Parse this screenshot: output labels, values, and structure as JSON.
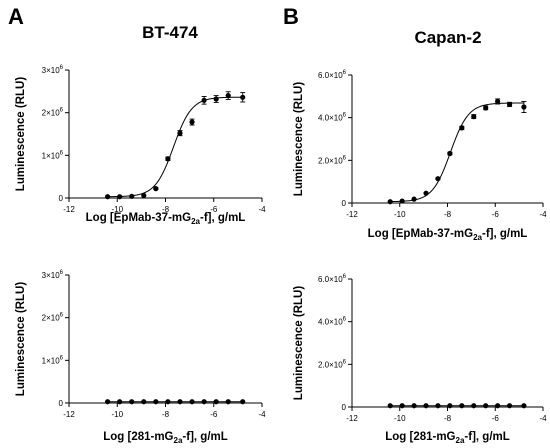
{
  "panel_letters": [
    "A",
    "B"
  ],
  "chart_data": [
    {
      "type": "scatter",
      "title": "BT-474",
      "ylabel": "Luminescence (RLU)",
      "xlabel": {
        "main": "Log [EpMab-37-mG",
        "sub": "2a",
        "post": "-f], g/mL"
      },
      "xlim": [
        -12,
        -4
      ],
      "ylim": [
        0,
        3000000
      ],
      "xticks": [
        -12,
        -10,
        -8,
        -6,
        -4
      ],
      "xtick_labels": [
        "-12",
        "-10",
        "-8",
        "-6",
        "-4"
      ],
      "yticks": [
        0,
        1000000,
        2000000,
        3000000
      ],
      "ytick_labels": [
        {
          "base": "0",
          "exp": ""
        },
        {
          "base": "1×10",
          "exp": "6"
        },
        {
          "base": "2×10",
          "exp": "6"
        },
        {
          "base": "3×10",
          "exp": "6"
        }
      ],
      "grid": false,
      "fit_curve": true,
      "series": [
        {
          "x": [
            -10.4,
            -9.9,
            -9.4,
            -8.9,
            -8.4,
            -7.9,
            -7.4,
            -6.9,
            -6.4,
            -5.9,
            -5.4,
            -4.8
          ],
          "y": [
            30000,
            30000,
            40000,
            60000,
            220000,
            920000,
            1520000,
            1780000,
            2290000,
            2320000,
            2400000,
            2360000
          ],
          "err": [
            0,
            0,
            0,
            0,
            20000,
            40000,
            60000,
            70000,
            90000,
            80000,
            90000,
            110000
          ]
        }
      ]
    },
    {
      "type": "scatter",
      "title": "Capan-2",
      "ylabel": "Luminescence (RLU)",
      "xlabel": {
        "main": "Log [EpMab-37-mG",
        "sub": "2a",
        "post": "-f], g/mL"
      },
      "xlim": [
        -12,
        -4
      ],
      "ylim": [
        0,
        6000000
      ],
      "xticks": [
        -12,
        -10,
        -8,
        -6,
        -4
      ],
      "xtick_labels": [
        "-12",
        "-10",
        "-8",
        "-6",
        "-4"
      ],
      "yticks": [
        0,
        2000000,
        4000000,
        6000000
      ],
      "ytick_labels": [
        {
          "base": "0",
          "exp": ""
        },
        {
          "base": "2.0×10",
          "exp": "6"
        },
        {
          "base": "4.0×10",
          "exp": "6"
        },
        {
          "base": "6.0×10",
          "exp": "6"
        }
      ],
      "grid": false,
      "fit_curve": true,
      "series": [
        {
          "x": [
            -10.4,
            -9.9,
            -9.4,
            -8.9,
            -8.4,
            -7.9,
            -7.4,
            -6.9,
            -6.4,
            -5.9,
            -5.4,
            -4.8
          ],
          "y": [
            60000,
            90000,
            180000,
            460000,
            1140000,
            2320000,
            3520000,
            4050000,
            4460000,
            4760000,
            4620000,
            4500000
          ],
          "err": [
            0,
            0,
            0,
            0,
            40000,
            60000,
            80000,
            90000,
            90000,
            120000,
            100000,
            260000
          ]
        }
      ]
    },
    {
      "type": "scatter",
      "title": "",
      "ylabel": "Luminescence (RLU)",
      "xlabel": {
        "main": "Log [281-mG",
        "sub": "2a",
        "post": "-f], g/mL"
      },
      "xlim": [
        -12,
        -4
      ],
      "ylim": [
        0,
        3000000
      ],
      "xticks": [
        -12,
        -10,
        -8,
        -6,
        -4
      ],
      "xtick_labels": [
        "-12",
        "-10",
        "-8",
        "-6",
        "-4"
      ],
      "yticks": [
        0,
        1000000,
        2000000,
        3000000
      ],
      "ytick_labels": [
        {
          "base": "0",
          "exp": ""
        },
        {
          "base": "1×10",
          "exp": "6"
        },
        {
          "base": "2×10",
          "exp": "6"
        },
        {
          "base": "3×10",
          "exp": "6"
        }
      ],
      "grid": false,
      "fit_curve": true,
      "series": [
        {
          "x": [
            -10.4,
            -9.9,
            -9.4,
            -8.9,
            -8.4,
            -7.9,
            -7.4,
            -6.9,
            -6.4,
            -5.9,
            -5.4,
            -4.8
          ],
          "y": [
            30000,
            30000,
            30000,
            30000,
            30000,
            30000,
            30000,
            30000,
            30000,
            30000,
            30000,
            30000
          ],
          "err": [
            0,
            0,
            0,
            0,
            0,
            0,
            0,
            0,
            0,
            0,
            0,
            0
          ]
        }
      ]
    },
    {
      "type": "scatter",
      "title": "",
      "ylabel": "Luminescence (RLU)",
      "xlabel": {
        "main": "Log [281-mG",
        "sub": "2a",
        "post": "-f], g/mL"
      },
      "xlim": [
        -12,
        -4
      ],
      "ylim": [
        0,
        6000000
      ],
      "xticks": [
        -12,
        -10,
        -8,
        -6,
        -4
      ],
      "xtick_labels": [
        "-12",
        "-10",
        "-8",
        "-6",
        "-4"
      ],
      "yticks": [
        0,
        2000000,
        4000000,
        6000000
      ],
      "ytick_labels": [
        {
          "base": "0",
          "exp": ""
        },
        {
          "base": "2.0×10",
          "exp": "6"
        },
        {
          "base": "4.0×10",
          "exp": "6"
        },
        {
          "base": "6.0×10",
          "exp": "6"
        }
      ],
      "grid": false,
      "fit_curve": true,
      "series": [
        {
          "x": [
            -10.4,
            -9.9,
            -9.4,
            -8.9,
            -8.4,
            -7.9,
            -7.4,
            -6.9,
            -6.4,
            -5.9,
            -5.4,
            -4.8
          ],
          "y": [
            60000,
            60000,
            60000,
            60000,
            60000,
            60000,
            60000,
            60000,
            60000,
            60000,
            60000,
            60000
          ],
          "err": [
            0,
            0,
            0,
            0,
            0,
            0,
            0,
            0,
            0,
            0,
            0,
            0
          ]
        }
      ]
    }
  ]
}
